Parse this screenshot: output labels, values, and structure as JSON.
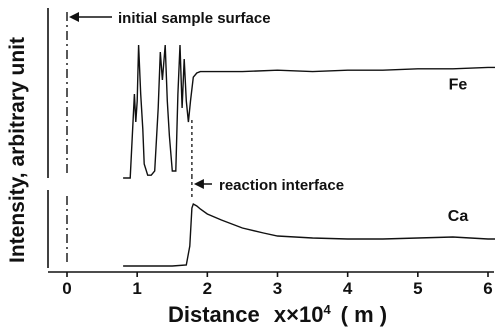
{
  "chart_data": {
    "type": "line",
    "xlabel": "Distance",
    "xlabel_x": "x",
    "xlabel_exp": "10",
    "xlabel_pow": "4",
    "xlabel_unit": "( m )",
    "ylabel": "Intensity, arbitrary unit",
    "xlim": [
      -0.7,
      6.1
    ],
    "xticks": [
      0,
      1,
      2,
      3,
      4,
      5,
      6
    ],
    "xtick_labels": [
      "0",
      "1",
      "2",
      "3",
      "4",
      "5",
      "6"
    ],
    "annotations": {
      "initial_surface": "initial sample surface",
      "reaction_interface": "reaction interface",
      "initial_surface_x": 0,
      "reaction_interface_x": 1.78
    },
    "series": [
      {
        "name": "Fe",
        "x": [
          0.8,
          0.9,
          0.93,
          0.96,
          0.98,
          1.0,
          1.02,
          1.05,
          1.08,
          1.1,
          1.15,
          1.2,
          1.25,
          1.3,
          1.33,
          1.36,
          1.4,
          1.43,
          1.46,
          1.5,
          1.55,
          1.58,
          1.61,
          1.64,
          1.67,
          1.7,
          1.73,
          1.76,
          1.8,
          1.85,
          1.9,
          2.0,
          2.5,
          3.0,
          3.5,
          4.0,
          4.5,
          5.0,
          5.5,
          6.0,
          6.1
        ],
        "values": [
          0.0,
          0.0,
          0.3,
          0.6,
          0.4,
          0.55,
          0.95,
          0.6,
          0.35,
          0.1,
          0.02,
          0.02,
          0.05,
          0.5,
          0.9,
          0.7,
          0.95,
          0.55,
          0.3,
          0.05,
          0.05,
          0.6,
          0.95,
          0.5,
          0.85,
          0.55,
          0.4,
          0.55,
          0.72,
          0.75,
          0.76,
          0.76,
          0.76,
          0.77,
          0.76,
          0.77,
          0.77,
          0.78,
          0.78,
          0.79,
          0.79
        ]
      },
      {
        "name": "Ca",
        "x": [
          0.8,
          1.0,
          1.5,
          1.7,
          1.75,
          1.78,
          1.8,
          1.85,
          1.9,
          2.0,
          2.2,
          2.5,
          2.8,
          3.0,
          3.5,
          4.0,
          4.5,
          5.0,
          5.5,
          6.0,
          6.1
        ],
        "values": [
          0.0,
          0.0,
          0.0,
          0.01,
          0.2,
          0.58,
          0.62,
          0.6,
          0.57,
          0.52,
          0.46,
          0.38,
          0.33,
          0.3,
          0.28,
          0.27,
          0.27,
          0.28,
          0.29,
          0.27,
          0.27
        ]
      }
    ],
    "legend_placement": "right-of-trace"
  }
}
